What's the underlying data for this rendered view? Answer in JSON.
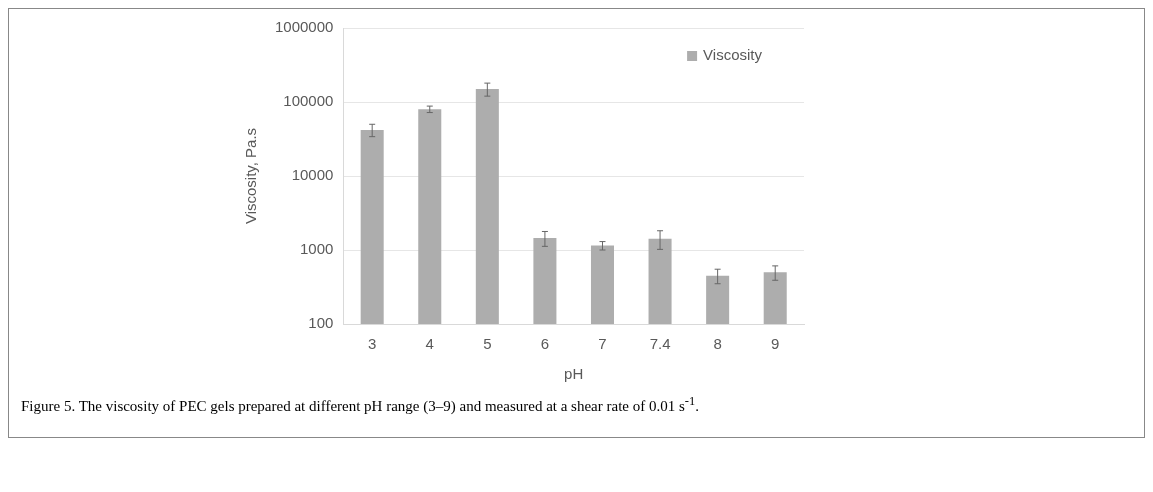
{
  "chart_data": {
    "type": "bar",
    "xlabel": "pH",
    "ylabel": "Viscosity, Pa.s",
    "categories": [
      "3",
      "4",
      "5",
      "6",
      "7",
      "7.4",
      "8",
      "9"
    ],
    "series": [
      {
        "name": "Viscosity",
        "color": "#adadad",
        "values": [
          42000,
          80000,
          150000,
          1450,
          1150,
          1420,
          450,
          500
        ],
        "errors": [
          8000,
          8000,
          30000,
          330,
          150,
          400,
          100,
          110
        ]
      }
    ],
    "log": true,
    "ylim": [
      100,
      1000000
    ],
    "yticks": [
      100,
      1000,
      10000,
      100000,
      1000000
    ],
    "grid": "y",
    "legend": "top right",
    "annotations": [
      "Figure 5. The viscosity of PEC gels prepared at different pH range (3–9) and measured at a shear rate of 0.01 s$^{-1}$."
    ]
  }
}
